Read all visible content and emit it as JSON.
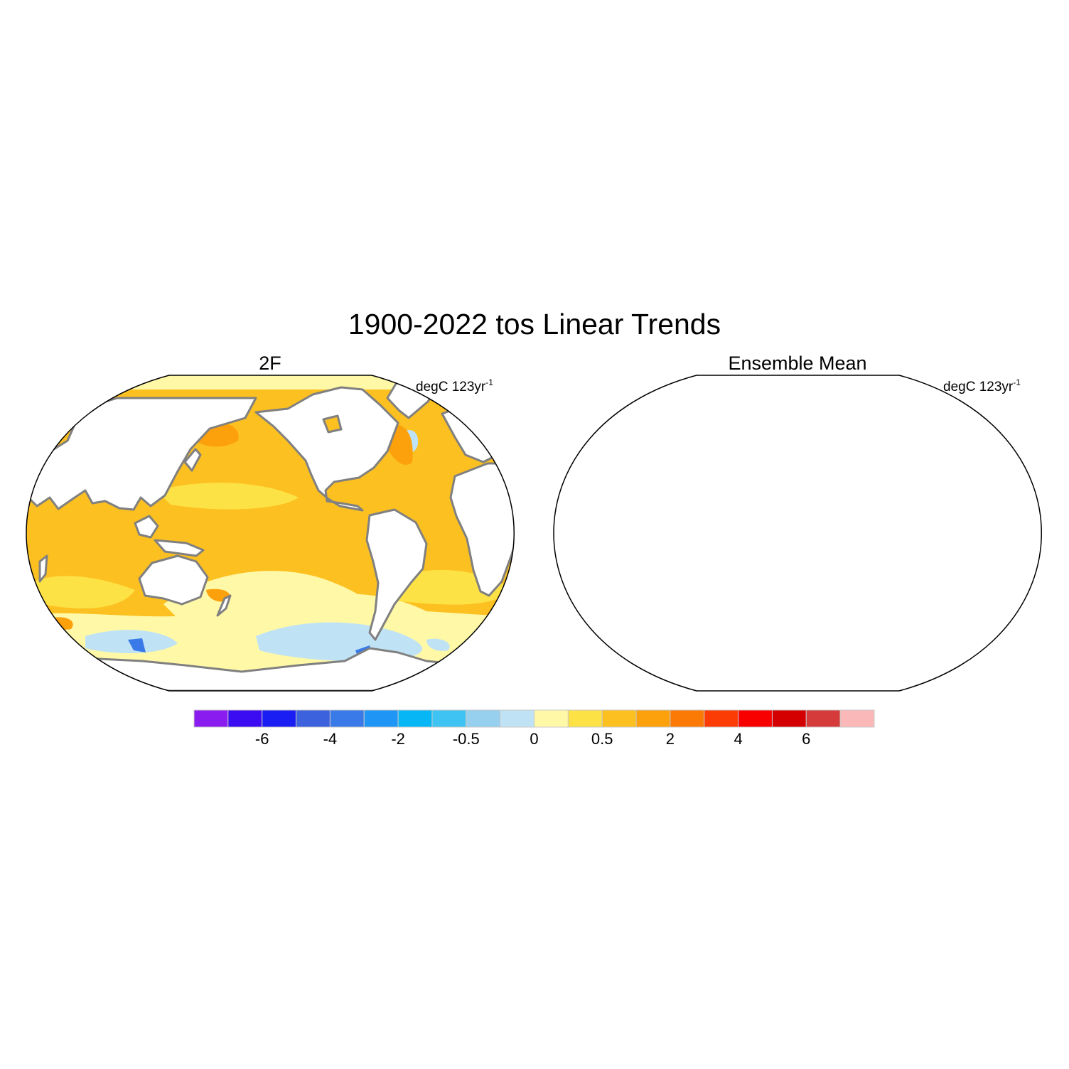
{
  "title": "1900-2022 tos Linear Trends",
  "panels": [
    {
      "title": "2F",
      "units_base": "degC 123yr",
      "units_exp": "-1",
      "extra_cold": true
    },
    {
      "title": "Ensemble Mean",
      "units_base": "degC 123yr",
      "units_exp": "-1",
      "extra_cold": false
    }
  ],
  "colorbar": {
    "colors": [
      "#8b1cf0",
      "#3b0bf2",
      "#1a1ef3",
      "#3d62dd",
      "#3a79e8",
      "#1f96f5",
      "#07b6f5",
      "#3fc3f2",
      "#96d0ee",
      "#bfe3f5",
      "#fff8a6",
      "#fde246",
      "#fcc020",
      "#fca00c",
      "#fb7a05",
      "#fb3c04",
      "#f90000",
      "#d40000",
      "#d63b3b",
      "#fbb8b8"
    ],
    "labels": [
      "-6",
      "-4",
      "-2",
      "-0.5",
      "0",
      "0.5",
      "2",
      "4",
      "6"
    ]
  },
  "colors": {
    "ocean_base": "#fcc020",
    "land": "#ffffff",
    "coastline": "#808080",
    "outline": "#000000"
  }
}
